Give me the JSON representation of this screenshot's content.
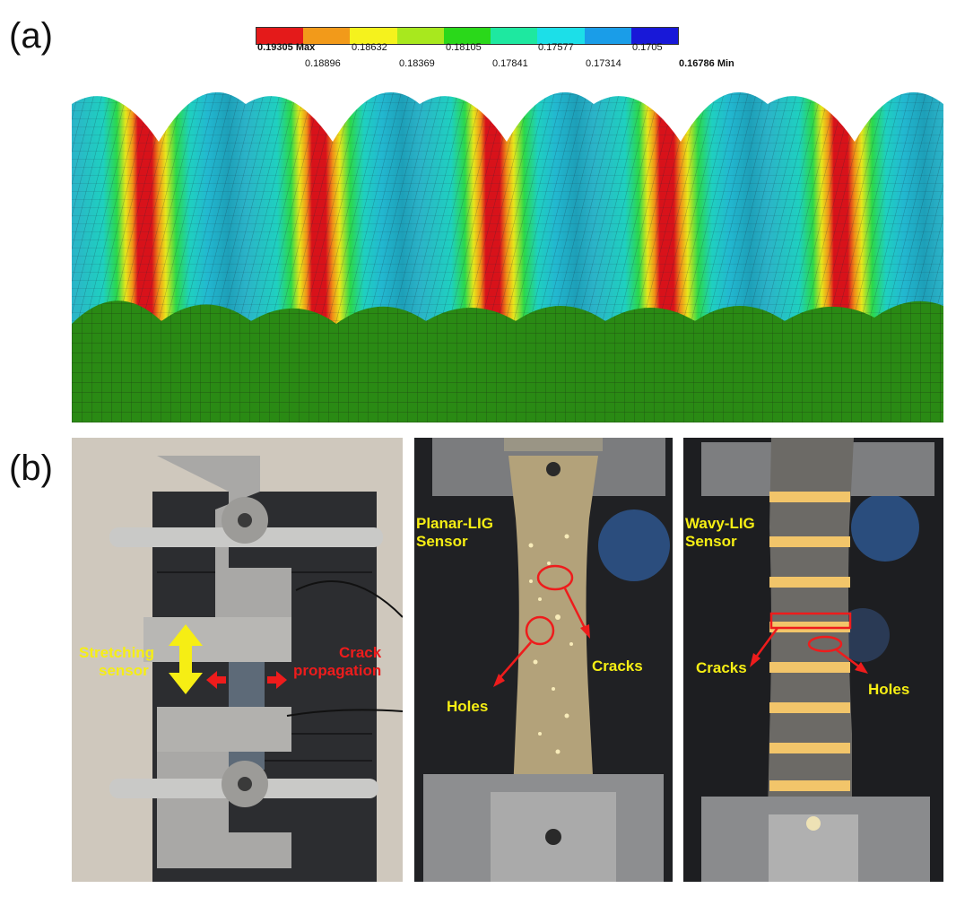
{
  "panels": {
    "a": {
      "letter": "(a)"
    },
    "b": {
      "letter": "(b)"
    }
  },
  "legend": {
    "colors": [
      "#e41a1a",
      "#f29a1a",
      "#f5f21d",
      "#a8e81e",
      "#2ad81a",
      "#1ee8a0",
      "#1cdfe8",
      "#1a9de8",
      "#1818d8"
    ],
    "top_labels": [
      {
        "value": "0.19305",
        "suffix": "Max"
      },
      {
        "value": "0.18632"
      },
      {
        "value": "0.18105"
      },
      {
        "value": "0.17577"
      },
      {
        "value": "0.1705"
      }
    ],
    "bottom_labels": [
      {
        "value": "0.18896"
      },
      {
        "value": "0.18369"
      },
      {
        "value": "0.17841"
      },
      {
        "value": "0.17314"
      },
      {
        "value": "0.16786",
        "suffix": "Min"
      }
    ]
  },
  "photos": {
    "setup": {
      "stretching": [
        "Stretching",
        "sensor"
      ],
      "crack": [
        "Crack",
        "propagation"
      ]
    },
    "planar": {
      "title": [
        "Planar-LIG",
        "Sensor"
      ],
      "cracks": "Cracks",
      "holes": "Holes"
    },
    "wavy": {
      "title": [
        "Wavy-LIG",
        "Sensor"
      ],
      "cracks": "Cracks",
      "holes": "Holes"
    }
  }
}
